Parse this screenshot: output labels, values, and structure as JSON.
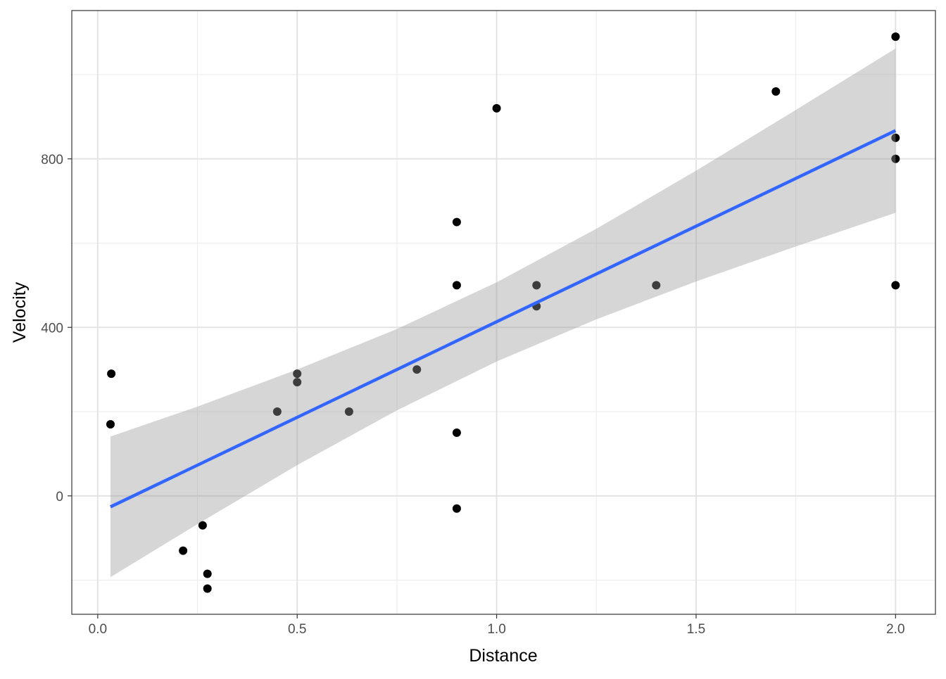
{
  "chart_data": {
    "type": "scatter",
    "title": "",
    "xlabel": "Distance",
    "ylabel": "Velocity",
    "xlim": [
      -0.065,
      2.1
    ],
    "ylim": [
      -281,
      1152
    ],
    "grid": true,
    "x_ticks": [
      0,
      0.5,
      1,
      1.5,
      2
    ],
    "x_tick_labels": [
      "0.0",
      "0.5",
      "1.0",
      "1.5",
      "2.0"
    ],
    "y_ticks": [
      0,
      400,
      800
    ],
    "y_tick_labels": [
      "0",
      "400",
      "800"
    ],
    "x_minor": [
      0.25,
      0.75,
      1.25,
      1.75
    ],
    "y_minor": [
      -200,
      200,
      600,
      1000
    ],
    "points": {
      "x": [
        0.032,
        0.034,
        0.214,
        0.263,
        0.275,
        0.275,
        0.45,
        0.5,
        0.5,
        0.63,
        0.8,
        0.9,
        0.9,
        0.9,
        0.9,
        1.0,
        1.1,
        1.1,
        1.4,
        1.7,
        2.0,
        2.0,
        2.0,
        2.0
      ],
      "y": [
        170,
        290,
        -130,
        -70,
        -185,
        -220,
        200,
        290,
        270,
        200,
        300,
        -30,
        650,
        150,
        500,
        920,
        450,
        500,
        500,
        960,
        500,
        850,
        800,
        1090
      ]
    },
    "fit": {
      "method": "lm",
      "x": [
        0.032,
        2.0
      ],
      "y": [
        -26,
        867
      ],
      "color": "#3366FF"
    },
    "confidence_band": {
      "x": [
        0.032,
        0.25,
        0.5,
        0.75,
        1.0,
        1.25,
        1.5,
        1.75,
        2.0
      ],
      "lower": [
        -193,
        -67,
        73,
        203,
        319,
        419,
        509,
        592,
        672
      ],
      "upper": [
        141,
        212,
        300,
        396,
        507,
        634,
        772,
        916,
        1062
      ],
      "color": "#999999"
    }
  }
}
